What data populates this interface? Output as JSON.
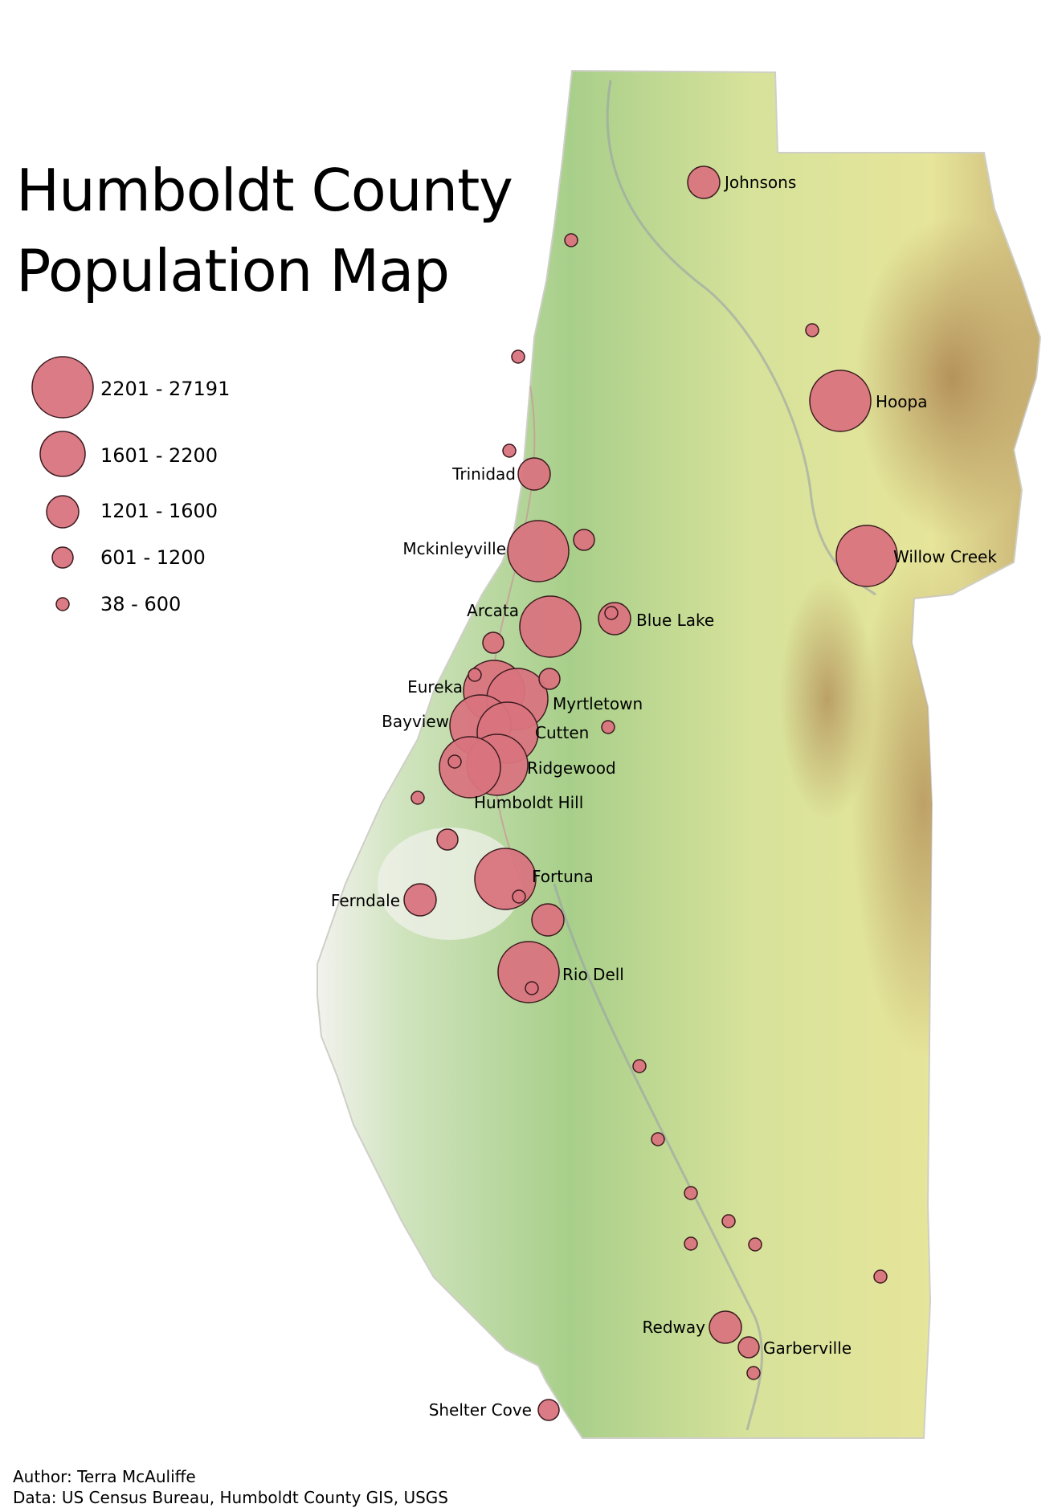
{
  "title": {
    "line1": "Humboldt County",
    "line2": "Population Map"
  },
  "legend": {
    "classes": [
      {
        "label": "2201 - 27191",
        "size_class": 5
      },
      {
        "label": "1601 - 2200",
        "size_class": 4
      },
      {
        "label": "1201 - 1600",
        "size_class": 3
      },
      {
        "label": "601 - 1200",
        "size_class": 2
      },
      {
        "label": "38 - 600",
        "size_class": 1
      }
    ]
  },
  "towns": [
    {
      "name": "Johnsons",
      "size_class": 3
    },
    {
      "name": "Hoopa",
      "size_class": 5
    },
    {
      "name": "Willow Creek",
      "size_class": 5
    },
    {
      "name": "Trinidad",
      "size_class": 3
    },
    {
      "name": "Mckinleyville",
      "size_class": 5
    },
    {
      "name": "Arcata",
      "size_class": 5
    },
    {
      "name": "Blue Lake",
      "size_class": 3
    },
    {
      "name": "Eureka",
      "size_class": 5
    },
    {
      "name": "Myrtletown",
      "size_class": 5
    },
    {
      "name": "Bayview",
      "size_class": 5
    },
    {
      "name": "Cutten",
      "size_class": 5
    },
    {
      "name": "Ridgewood",
      "size_class": 5
    },
    {
      "name": "Humboldt Hill",
      "size_class": 5
    },
    {
      "name": "Fortuna",
      "size_class": 5
    },
    {
      "name": "Ferndale",
      "size_class": 3
    },
    {
      "name": "Rio Dell",
      "size_class": 5
    },
    {
      "name": "Redway",
      "size_class": 3
    },
    {
      "name": "Garberville",
      "size_class": 2
    },
    {
      "name": "Shelter Cove",
      "size_class": 2
    }
  ],
  "unlabeled_places": [
    {
      "size_class": 1
    },
    {
      "size_class": 1
    },
    {
      "size_class": 1
    },
    {
      "size_class": 1
    },
    {
      "size_class": 2
    },
    {
      "size_class": 2
    },
    {
      "size_class": 1
    },
    {
      "size_class": 2
    },
    {
      "size_class": 1
    },
    {
      "size_class": 1
    },
    {
      "size_class": 2
    },
    {
      "size_class": 3
    },
    {
      "size_class": 1
    },
    {
      "size_class": 1
    },
    {
      "size_class": 1
    },
    {
      "size_class": 1
    },
    {
      "size_class": 1
    },
    {
      "size_class": 1
    },
    {
      "size_class": 1
    },
    {
      "size_class": 1
    },
    {
      "size_class": 1
    },
    {
      "size_class": 1
    },
    {
      "size_class": 1
    },
    {
      "size_class": 1
    }
  ],
  "colors": {
    "symbol_fill": "#d9747e",
    "symbol_stroke": "#3a1a1e",
    "terrain_low": "#a8cf8a",
    "terrain_mid": "#e6e59a",
    "terrain_high": "#b08a55",
    "coast_white": "#f2f2ee"
  },
  "credits": {
    "author": "Author: Terra McAuliffe",
    "data": "Data: US Census Bureau, Humboldt County GIS, USGS"
  }
}
